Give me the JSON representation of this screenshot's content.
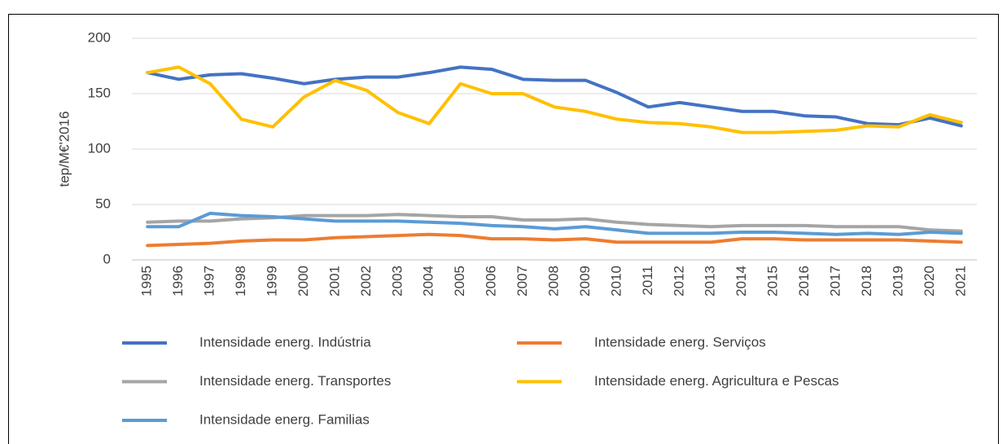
{
  "chart_data": {
    "type": "line",
    "y_label": "tep/M€'2016",
    "categories": [
      "1995",
      "1996",
      "1997",
      "1998",
      "1999",
      "2000",
      "2001",
      "2002",
      "2003",
      "2004",
      "2005",
      "2006",
      "2007",
      "2008",
      "2009",
      "2010",
      "2011",
      "2012",
      "2013",
      "2014",
      "2015",
      "2016",
      "2017",
      "2018",
      "2019",
      "2020",
      "2021"
    ],
    "series": [
      {
        "name": "Intensidade energ. Indústria",
        "color": "#4472c4",
        "values": [
          169,
          163,
          167,
          168,
          164,
          159,
          163,
          165,
          165,
          169,
          174,
          172,
          163,
          162,
          162,
          151,
          138,
          142,
          138,
          134,
          134,
          130,
          129,
          123,
          122,
          128,
          121
        ]
      },
      {
        "name": "Intensidade energ. Serviços",
        "color": "#ed7d31",
        "values": [
          13,
          14,
          15,
          17,
          18,
          18,
          20,
          21,
          22,
          23,
          22,
          19,
          19,
          18,
          19,
          16,
          16,
          16,
          16,
          19,
          19,
          18,
          18,
          18,
          18,
          17,
          16
        ]
      },
      {
        "name": "Intensidade energ. Transportes",
        "color": "#a5a5a5",
        "values": [
          34,
          35,
          35,
          37,
          38,
          40,
          40,
          40,
          41,
          40,
          39,
          39,
          36,
          36,
          37,
          34,
          32,
          31,
          30,
          31,
          31,
          31,
          30,
          30,
          30,
          27,
          26
        ]
      },
      {
        "name": "Intensidade energ. Agricultura e Pescas",
        "color": "#ffc000",
        "values": [
          169,
          174,
          159,
          127,
          120,
          147,
          162,
          153,
          133,
          123,
          159,
          150,
          150,
          138,
          134,
          127,
          124,
          123,
          120,
          115,
          115,
          116,
          117,
          121,
          120,
          131,
          124
        ]
      },
      {
        "name": "Intensidade energ. Familias",
        "color": "#5b9bd5",
        "values": [
          30,
          30,
          42,
          40,
          39,
          37,
          35,
          35,
          35,
          34,
          33,
          31,
          30,
          28,
          30,
          27,
          24,
          24,
          24,
          25,
          25,
          24,
          23,
          24,
          23,
          25,
          24
        ]
      }
    ],
    "ylim": [
      0,
      200
    ],
    "yticks": [
      0,
      50,
      100,
      150,
      200
    ],
    "grid": true,
    "legend": "bottom"
  }
}
